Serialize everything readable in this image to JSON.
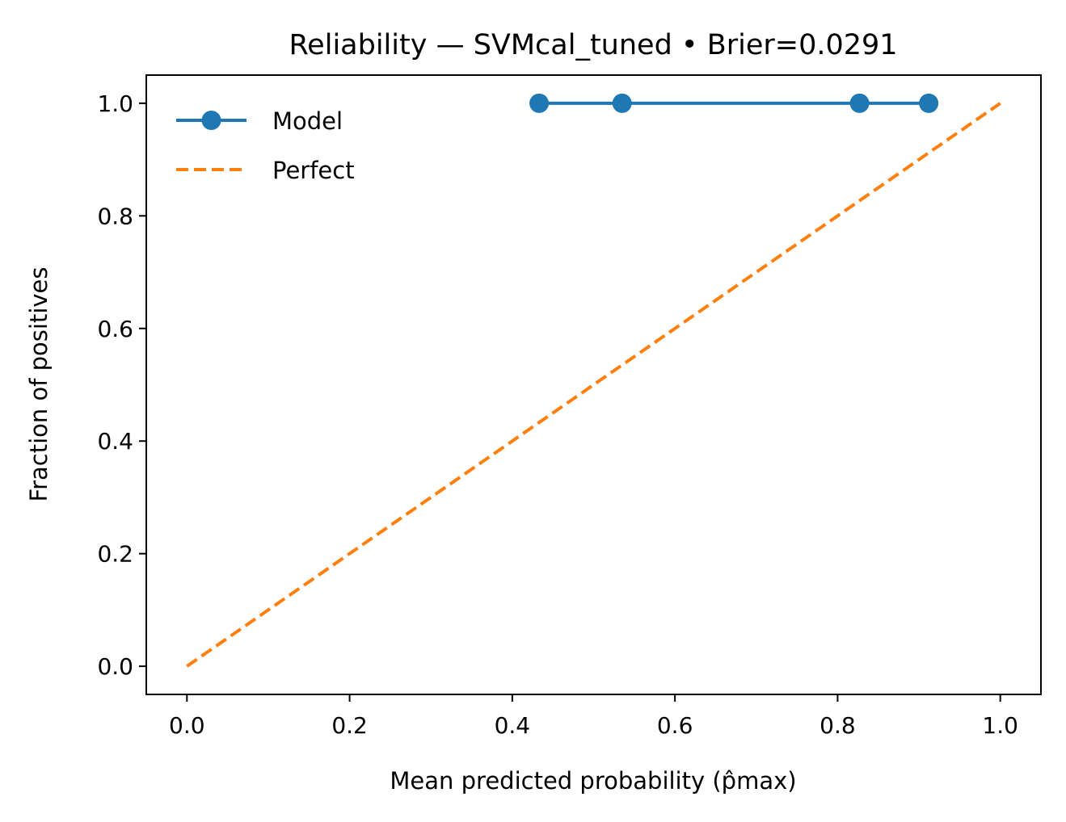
{
  "chart_data": {
    "type": "line",
    "title": "Reliability — SVMcal_tuned  •  Brier=0.0291",
    "xlabel": "Mean predicted probability (p̂max)",
    "ylabel": "Fraction of positives",
    "xlim": [
      -0.05,
      1.05
    ],
    "ylim": [
      -0.05,
      1.05
    ],
    "xticks": [
      0.0,
      0.2,
      0.4,
      0.6,
      0.8,
      1.0
    ],
    "yticks": [
      0.0,
      0.2,
      0.4,
      0.6,
      0.8,
      1.0
    ],
    "tick_labels_x": [
      "0.0",
      "0.2",
      "0.4",
      "0.6",
      "0.8",
      "1.0"
    ],
    "tick_labels_y": [
      "0.0",
      "0.2",
      "0.4",
      "0.6",
      "0.8",
      "1.0"
    ],
    "grid": false,
    "legend_position": "top-left",
    "series": [
      {
        "name": "Model",
        "style": "solid-with-markers",
        "color": "#1f77b4",
        "x": [
          0.433,
          0.535,
          0.827,
          0.912
        ],
        "y": [
          1.0,
          1.0,
          1.0,
          1.0
        ]
      },
      {
        "name": "Perfect",
        "style": "dashed",
        "color": "#ff7f0e",
        "x": [
          0.0,
          1.0
        ],
        "y": [
          0.0,
          1.0
        ]
      }
    ]
  }
}
